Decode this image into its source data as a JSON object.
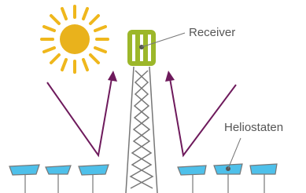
{
  "labels": {
    "receiver": "Receiver",
    "heliostats": "Heliostaten"
  }
}
